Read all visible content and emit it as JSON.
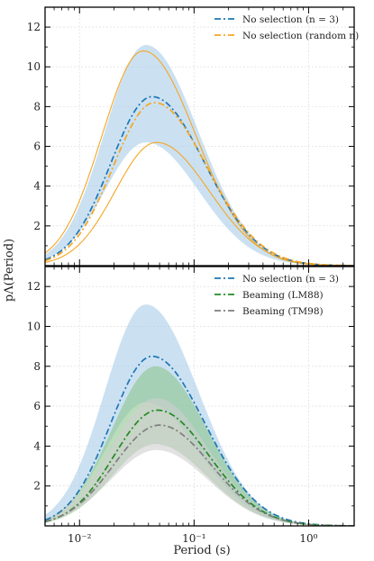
{
  "chart_data": [
    {
      "type": "line",
      "panel": "top",
      "xscale": "log",
      "xlim": [
        0.005,
        2.5
      ],
      "ylim": [
        0,
        13
      ],
      "yticks": [
        2,
        4,
        6,
        8,
        10,
        12
      ],
      "grid": true,
      "legend_position": "top-right",
      "ylabel": "pΛ(Period)",
      "series": [
        {
          "name": "No selection (n = 3)",
          "style": "dashdot",
          "color": "#1f77b4",
          "peak_x": 0.043,
          "peak_y": 8.5,
          "width_left": 0.36,
          "width_right": 0.46,
          "band": {
            "color": "#a9cde9",
            "lower": 6.2,
            "upper": 11.1,
            "peak_x": 0.038
          }
        },
        {
          "name": "No selection (random n)",
          "style": "dashdot",
          "color": "#f5a623",
          "peak_x": 0.045,
          "peak_y": 8.2,
          "width_left": 0.36,
          "width_right": 0.46,
          "band": {
            "style": "line-envelope",
            "lower": 6.2,
            "upper": 10.8,
            "peak_x_lower": 0.047,
            "peak_x_upper": 0.036
          }
        }
      ]
    },
    {
      "type": "line",
      "panel": "bottom",
      "xscale": "log",
      "xlim": [
        0.005,
        2.5
      ],
      "ylim": [
        0,
        13
      ],
      "yticks": [
        2,
        4,
        6,
        8,
        10,
        12
      ],
      "xticks": [
        {
          "value": 0.01,
          "label": "10⁻²"
        },
        {
          "value": 0.1,
          "label": "10⁻¹"
        },
        {
          "value": 1,
          "label": "10⁰"
        }
      ],
      "grid": true,
      "legend_position": "top-right",
      "xlabel": "Period (s)",
      "series": [
        {
          "name": "No selection (n = 3)",
          "style": "dashdot",
          "color": "#1f77b4",
          "peak_x": 0.043,
          "peak_y": 8.5,
          "width_left": 0.36,
          "width_right": 0.46,
          "band": {
            "color": "#a9cde9",
            "lower": 6.2,
            "upper": 11.1,
            "peak_x": 0.038
          }
        },
        {
          "name": "Beaming (LM88)",
          "style": "dashdot",
          "color": "#228b22",
          "peak_x": 0.048,
          "peak_y": 5.8,
          "width_left": 0.38,
          "width_right": 0.45,
          "band": {
            "color": "#8ec48e",
            "lower": 4.1,
            "upper": 8.0,
            "peak_x": 0.046
          }
        },
        {
          "name": "Beaming (TM98)",
          "style": "dashdot",
          "color": "#7f7f7f",
          "peak_x": 0.05,
          "peak_y": 5.05,
          "width_left": 0.4,
          "width_right": 0.45,
          "band": {
            "color": "#cfcfcf",
            "lower": 3.8,
            "upper": 6.4,
            "peak_x": 0.047
          }
        }
      ]
    }
  ]
}
